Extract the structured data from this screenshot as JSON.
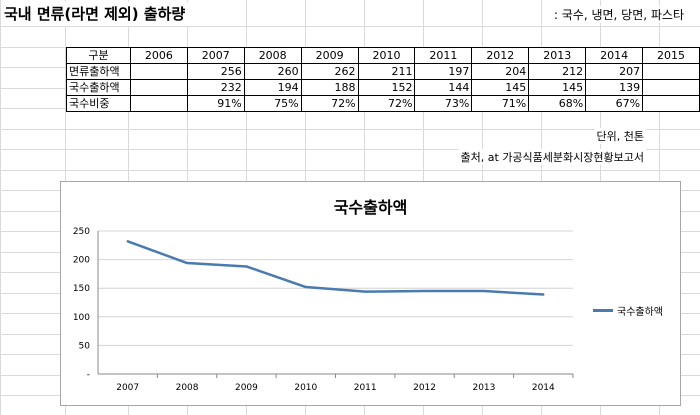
{
  "page": {
    "title": "국내 면류(라면 제외) 출하량",
    "subtitle": ": 국수, 냉면, 당면, 파스타",
    "unit_note": "단위, 천톤",
    "source_note": "출처, at 가공식품세분화시장현황보고서"
  },
  "table": {
    "header_label": "구분",
    "years": [
      "2006",
      "2007",
      "2008",
      "2009",
      "2010",
      "2011",
      "2012",
      "2013",
      "2014",
      "2015"
    ],
    "rows": [
      {
        "label": "면류출하액",
        "cells": [
          "",
          "256",
          "260",
          "262",
          "211",
          "197",
          "204",
          "212",
          "207",
          ""
        ]
      },
      {
        "label": "국수출하액",
        "cells": [
          "",
          "232",
          "194",
          "188",
          "152",
          "144",
          "145",
          "145",
          "139",
          ""
        ]
      },
      {
        "label": "국수비중",
        "cells": [
          "",
          "91%",
          "75%",
          "72%",
          "72%",
          "73%",
          "71%",
          "68%",
          "67%",
          ""
        ]
      }
    ]
  },
  "chart_data": {
    "type": "line",
    "title": "국수출하액",
    "categories": [
      "2007",
      "2008",
      "2009",
      "2010",
      "2011",
      "2012",
      "2013",
      "2014"
    ],
    "series": [
      {
        "name": "국수출하액",
        "values": [
          232,
          194,
          188,
          152,
          144,
          145,
          145,
          139
        ],
        "color": "#4a7ab0"
      }
    ],
    "ylim": [
      0,
      250
    ],
    "yticks": [
      "-",
      "50",
      "100",
      "150",
      "200",
      "250"
    ],
    "grid": true,
    "legend": "right"
  }
}
